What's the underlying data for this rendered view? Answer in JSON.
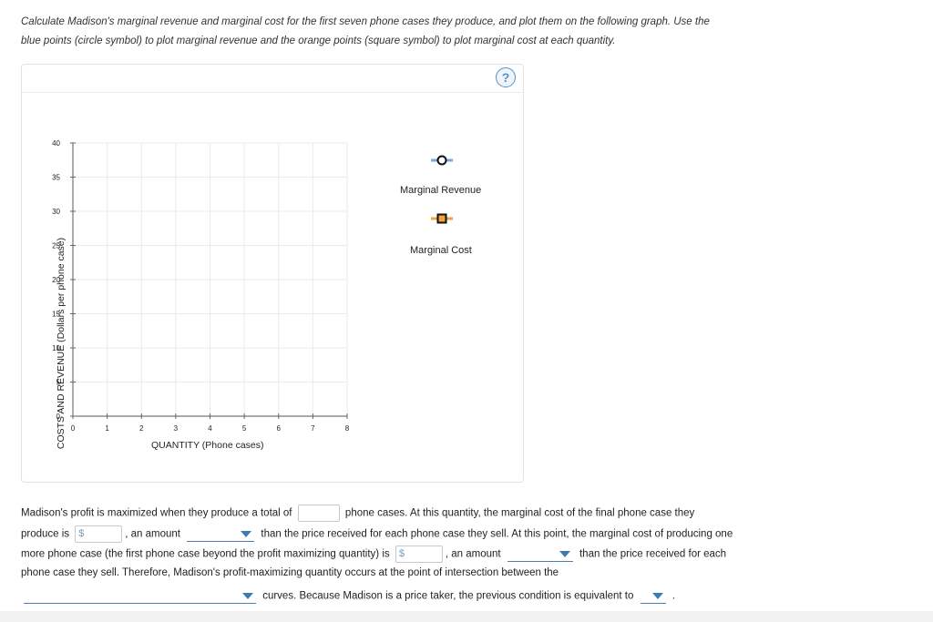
{
  "instructions": {
    "line1": "Calculate Madison's marginal revenue and marginal cost for the first seven phone cases they produce, and plot them on the following graph. Use the",
    "line2": "blue points (circle symbol) to plot marginal revenue and the orange points (square symbol) to plot marginal cost at each quantity."
  },
  "graph": {
    "help_label": "?",
    "ylabel": "COSTS AND REVENUE (Dollars per phone case)",
    "xlabel": "QUANTITY (Phone cases)",
    "legend": {
      "marginal_revenue": "Marginal Revenue",
      "marginal_cost": "Marginal Cost"
    },
    "colors": {
      "mr": "#7ea6d6",
      "cost": "#f0a23c",
      "grid": "#ebebeb"
    }
  },
  "chart_data": {
    "type": "scatter",
    "xlabel": "QUANTITY (Phone cases)",
    "ylabel": "COSTS AND REVENUE (Dollars per phone case)",
    "xlim": [
      0,
      8
    ],
    "ylim": [
      0,
      40
    ],
    "xticks": [
      "0",
      "1",
      "2",
      "3",
      "4",
      "5",
      "6",
      "7",
      "8"
    ],
    "yticks": [
      "0",
      "5",
      "10",
      "15",
      "20",
      "25",
      "30",
      "35",
      "40"
    ],
    "series": [
      {
        "name": "Marginal Revenue",
        "values": []
      },
      {
        "name": "Marginal Cost",
        "values": []
      }
    ],
    "grid": true
  },
  "question": {
    "l1a": "Madison's profit is maximized when they produce a total of",
    "l1b": "phone cases. At this quantity, the marginal cost of the final phone case they",
    "l2a": "produce is",
    "l2b": ", an amount",
    "l2c": "than the price received for each phone case they sell. At this point, the marginal cost of producing one",
    "l3a": "more phone case (the first phone case beyond the profit maximizing quantity) is",
    "l3b": ", an amount",
    "l3c": "than the price received for each",
    "l4": "phone case they sell. Therefore, Madison's profit-maximizing quantity occurs at the point of intersection between the",
    "l5": "curves. Because Madison is a price taker, the previous condition is equivalent to",
    "l5end": ".",
    "dollar": "$",
    "qty_value": "",
    "mc_final_value": "",
    "mc_next_value": ""
  }
}
